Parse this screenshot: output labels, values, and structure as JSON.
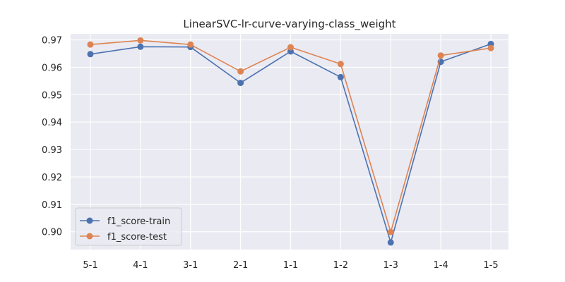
{
  "chart_data": {
    "type": "line",
    "title": "LinearSVC-lr-curve-varying-class_weight",
    "xlabel": "",
    "ylabel": "",
    "categories": [
      "5-1",
      "4-1",
      "3-1",
      "2-1",
      "1-1",
      "1-2",
      "1-3",
      "1-4",
      "1-5"
    ],
    "y_ticks": [
      "0.90",
      "0.91",
      "0.92",
      "0.93",
      "0.94",
      "0.95",
      "0.96",
      "0.97"
    ],
    "ylim": [
      0.8935,
      0.9722
    ],
    "grid": true,
    "legend_position": "lower-left",
    "series": [
      {
        "name": "f1_score-train",
        "color": "#4c72b0",
        "values": [
          0.9648,
          0.9675,
          0.9674,
          0.9543,
          0.9658,
          0.9564,
          0.8961,
          0.962,
          0.9685
        ]
      },
      {
        "name": "f1_score-test",
        "color": "#dd8452",
        "values": [
          0.9683,
          0.9698,
          0.9683,
          0.9585,
          0.9673,
          0.9612,
          0.8999,
          0.9643,
          0.967
        ]
      }
    ]
  },
  "style": {
    "plot_background": "#eaeaf2",
    "grid_color": "#ffffff",
    "text_color": "#262626",
    "legend_background": "#eaeaf2",
    "legend_border": "#cccccc"
  }
}
